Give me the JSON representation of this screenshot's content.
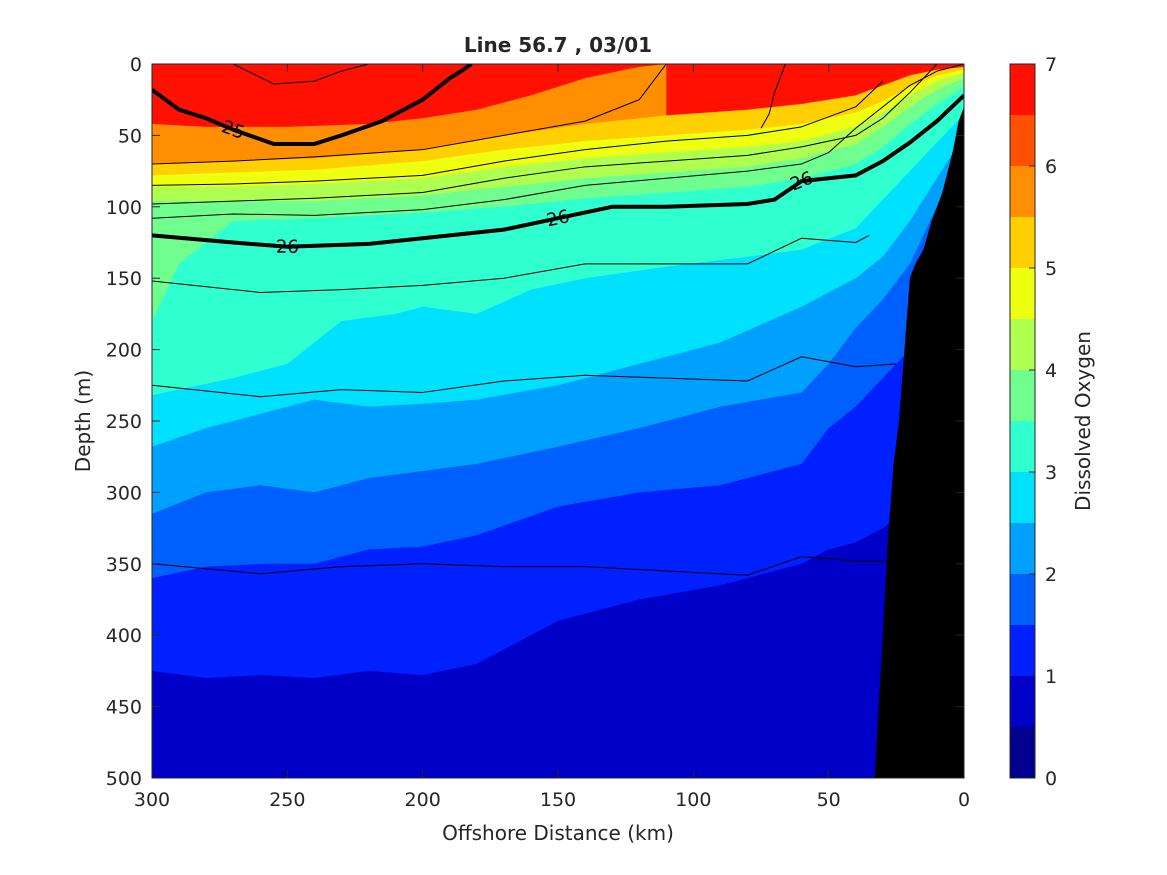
{
  "chart_data": {
    "type": "contour",
    "title": "Line 56.7 , 03/01",
    "xlabel": "Offshore Distance (km)",
    "ylabel": "Depth (m)",
    "colorbar_label": "Dissolved Oxygen",
    "xlim": [
      300,
      0
    ],
    "ylim": [
      0,
      500
    ],
    "x_ticks": [
      300,
      250,
      200,
      150,
      100,
      50,
      0
    ],
    "y_ticks": [
      0,
      50,
      100,
      150,
      200,
      250,
      300,
      350,
      400,
      450,
      500
    ],
    "colorbar_ticks": [
      0,
      1,
      2,
      3,
      4,
      5,
      6,
      7
    ],
    "colorbar_range": [
      0,
      7
    ],
    "oxygen_levels": [
      0.5,
      1,
      1.5,
      2,
      2.5,
      3,
      3.5,
      4,
      4.5,
      5,
      5.5,
      6,
      6.5
    ],
    "level_colors": [
      "#00008f",
      "#0000c8",
      "#0020ff",
      "#0060ff",
      "#00a0ff",
      "#00e0ff",
      "#30ffcf",
      "#70ff8f",
      "#afff50",
      "#efff10",
      "#ffcf00",
      "#ff8f00",
      "#ff5000",
      "#ff1000",
      "#c80000"
    ],
    "oxygen_boundaries": [
      {
        "level": 6.5,
        "x": [],
        "depth": []
      },
      {
        "level": 6,
        "x": [
          300,
          280,
          250,
          220,
          200,
          180,
          160,
          140,
          120,
          110
        ],
        "depth": [
          42,
          44,
          44,
          42,
          38,
          32,
          22,
          10,
          2,
          0
        ]
      },
      {
        "level": 5.5,
        "x": [
          300,
          270,
          240,
          200,
          170,
          140,
          110,
          80,
          60,
          40,
          30,
          20,
          10,
          0
        ],
        "depth": [
          70,
          68,
          66,
          60,
          50,
          42,
          36,
          32,
          28,
          22,
          15,
          8,
          4,
          2
        ]
      },
      {
        "level": 5,
        "x": [
          300,
          270,
          240,
          200,
          170,
          140,
          110,
          80,
          60,
          40,
          30,
          20,
          10,
          0
        ],
        "depth": [
          78,
          76,
          74,
          68,
          60,
          54,
          50,
          46,
          42,
          34,
          26,
          16,
          8,
          4
        ]
      },
      {
        "level": 4.5,
        "x": [
          300,
          270,
          240,
          200,
          170,
          140,
          110,
          80,
          60,
          40,
          30,
          20,
          10,
          0
        ],
        "depth": [
          86,
          86,
          84,
          80,
          72,
          66,
          62,
          58,
          54,
          44,
          34,
          22,
          12,
          6
        ]
      },
      {
        "level": 4,
        "x": [
          300,
          270,
          240,
          200,
          170,
          140,
          110,
          80,
          60,
          40,
          30,
          20,
          10,
          0
        ],
        "depth": [
          96,
          96,
          96,
          92,
          86,
          80,
          76,
          72,
          66,
          56,
          44,
          30,
          18,
          10
        ]
      },
      {
        "level": 3.5,
        "x": [
          300,
          290,
          270,
          240,
          200,
          170,
          140,
          110,
          80,
          60,
          40,
          30,
          20,
          10,
          0
        ],
        "depth": [
          180,
          140,
          110,
          108,
          104,
          100,
          94,
          90,
          86,
          80,
          70,
          58,
          42,
          28,
          16
        ]
      },
      {
        "level": 3,
        "x": [
          300,
          270,
          250,
          230,
          210,
          200,
          180,
          160,
          140,
          110,
          80,
          60,
          40,
          30,
          20,
          10,
          0
        ],
        "depth": [
          232,
          220,
          210,
          180,
          175,
          170,
          175,
          158,
          150,
          142,
          135,
          130,
          115,
          95,
          75,
          55,
          35
        ]
      },
      {
        "level": 2.5,
        "x": [
          300,
          280,
          260,
          240,
          220,
          200,
          180,
          150,
          120,
          90,
          60,
          40,
          30,
          20,
          10,
          0
        ],
        "depth": [
          268,
          255,
          245,
          235,
          240,
          238,
          235,
          225,
          210,
          195,
          170,
          150,
          135,
          110,
          80,
          50
        ]
      },
      {
        "level": 2,
        "x": [
          300,
          280,
          260,
          240,
          220,
          200,
          180,
          150,
          120,
          90,
          60,
          50,
          40,
          30,
          20,
          10,
          0
        ],
        "depth": [
          315,
          300,
          295,
          300,
          290,
          285,
          280,
          268,
          255,
          240,
          230,
          210,
          185,
          165,
          140,
          100,
          60
        ]
      },
      {
        "level": 1.5,
        "x": [
          300,
          280,
          260,
          240,
          220,
          200,
          180,
          150,
          120,
          90,
          60,
          50,
          40,
          30,
          20,
          10,
          0
        ],
        "depth": [
          360,
          352,
          350,
          350,
          340,
          338,
          330,
          310,
          300,
          295,
          280,
          255,
          240,
          220,
          200,
          160,
          120
        ]
      },
      {
        "level": 1,
        "x": [
          300,
          280,
          260,
          240,
          220,
          200,
          180,
          150,
          120,
          90,
          60,
          50,
          40,
          30,
          20,
          10,
          0
        ],
        "depth": [
          425,
          430,
          428,
          430,
          425,
          428,
          420,
          390,
          375,
          365,
          350,
          340,
          335,
          325,
          310,
          280,
          250
        ]
      },
      {
        "level": 0.5,
        "x": [],
        "depth": []
      }
    ],
    "density_contours": [
      {
        "label": "",
        "bold": false,
        "x": [
          300,
          260,
          230,
          200,
          170,
          140,
          110,
          80,
          60,
          40,
          25
        ],
        "depth": [
          350,
          357,
          352,
          350,
          352,
          352,
          355,
          358,
          345,
          348,
          348
        ]
      },
      {
        "label": "",
        "bold": false,
        "x": [
          300,
          260,
          230,
          200,
          170,
          140,
          110,
          80,
          60,
          40,
          25
        ],
        "depth": [
          225,
          233,
          228,
          230,
          222,
          218,
          220,
          222,
          205,
          212,
          210
        ]
      },
      {
        "label": "",
        "bold": false,
        "x": [
          300,
          260,
          230,
          200,
          170,
          140,
          110,
          80,
          60,
          40,
          35
        ],
        "depth": [
          152,
          160,
          158,
          155,
          150,
          140,
          140,
          140,
          122,
          125,
          120
        ]
      },
      {
        "label": "26",
        "bold": true,
        "x": [
          300,
          270,
          250,
          220,
          200,
          170,
          150,
          130,
          110,
          80,
          70,
          60,
          50,
          40,
          30,
          20,
          10,
          0
        ],
        "depth": [
          120,
          125,
          128,
          126,
          122,
          116,
          108,
          100,
          100,
          98,
          95,
          82,
          80,
          78,
          68,
          55,
          40,
          22
        ]
      },
      {
        "label": "",
        "bold": false,
        "x": [
          300,
          270,
          240,
          200,
          170,
          140,
          110,
          80,
          60,
          50,
          40,
          30,
          20,
          10,
          0
        ],
        "depth": [
          108,
          105,
          106,
          102,
          95,
          85,
          80,
          75,
          70,
          62,
          45,
          30,
          15,
          5,
          0
        ]
      },
      {
        "label": "",
        "bold": false,
        "x": [
          300,
          270,
          240,
          200,
          170,
          140,
          110,
          80,
          60,
          40,
          30,
          20,
          10
        ],
        "depth": [
          98,
          96,
          94,
          90,
          80,
          72,
          68,
          64,
          58,
          50,
          38,
          20,
          0
        ]
      },
      {
        "label": "",
        "bold": false,
        "x": [
          300,
          270,
          240,
          200,
          170,
          140,
          110,
          80,
          60,
          40,
          30
        ],
        "depth": [
          85,
          84,
          82,
          78,
          68,
          60,
          54,
          50,
          44,
          30,
          12
        ]
      },
      {
        "label": "",
        "bold": false,
        "x": [
          300,
          270,
          240,
          200,
          170,
          140,
          120,
          110
        ],
        "depth": [
          70,
          68,
          65,
          60,
          50,
          40,
          25,
          0
        ]
      },
      {
        "label": "",
        "bold": false,
        "x": [
          75,
          72,
          70,
          68,
          66
        ],
        "depth": [
          45,
          35,
          20,
          10,
          0
        ]
      },
      {
        "label": "25",
        "bold": true,
        "x": [
          300,
          290,
          280,
          270,
          255,
          240,
          230,
          215,
          200,
          190,
          185,
          182
        ],
        "depth": [
          18,
          32,
          38,
          46,
          56,
          56,
          50,
          40,
          25,
          10,
          4,
          0
        ]
      },
      {
        "label": "",
        "bold": false,
        "x": [
          270,
          255,
          240,
          230,
          220
        ],
        "depth": [
          0,
          14,
          12,
          5,
          0
        ]
      }
    ],
    "bathymetry": {
      "x": [
        33,
        30,
        28,
        26,
        24,
        22,
        20,
        18,
        15,
        12,
        8,
        4,
        2,
        0
      ],
      "depth": [
        500,
        400,
        330,
        280,
        250,
        200,
        150,
        140,
        130,
        110,
        90,
        60,
        40,
        30
      ],
      "color": "#000000"
    }
  }
}
